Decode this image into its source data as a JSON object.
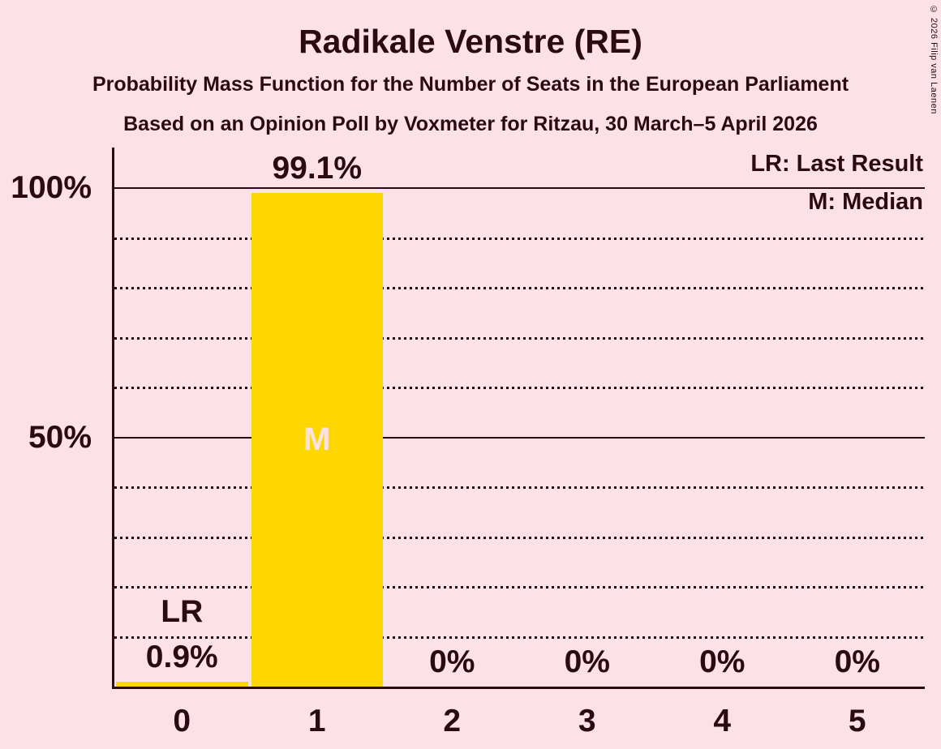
{
  "title": "Radikale Venstre (RE)",
  "subtitle": "Probability Mass Function for the Number of Seats in the European Parliament",
  "source_line": "Based on an Opinion Poll by Voxmeter for Ritzau, 30 March–5 April 2026",
  "copyright_note": "© 2026 Filip van Laenen",
  "legend": {
    "last_result": "LR: Last Result",
    "median": "M: Median"
  },
  "colors": {
    "background": "#fce2e7",
    "text": "#2c0a14",
    "bar": "#ffd700",
    "bar_inner_label": "#fce2e7"
  },
  "chart_data": {
    "type": "bar",
    "title": "Radikale Venstre (RE)",
    "subtitle": "Probability Mass Function for the Number of Seats in the European Parliament",
    "categories": [
      "0",
      "1",
      "2",
      "3",
      "4",
      "5"
    ],
    "values": [
      0.9,
      99.1,
      0,
      0,
      0,
      0
    ],
    "value_labels": [
      "0.9%",
      "99.1%",
      "0%",
      "0%",
      "0%",
      "0%"
    ],
    "ylim": [
      0,
      100
    ],
    "y_ticks": [
      {
        "value": 100,
        "label": "100%"
      },
      {
        "value": 50,
        "label": "50%"
      }
    ],
    "y_minor_step": 10,
    "grid": "minor gridlines dotted, major gridlines solid",
    "legend_position": "top-right",
    "annotations": [
      {
        "category": "0",
        "label": "LR",
        "type": "last_result"
      },
      {
        "category": "1",
        "label": "M",
        "type": "median"
      }
    ]
  }
}
